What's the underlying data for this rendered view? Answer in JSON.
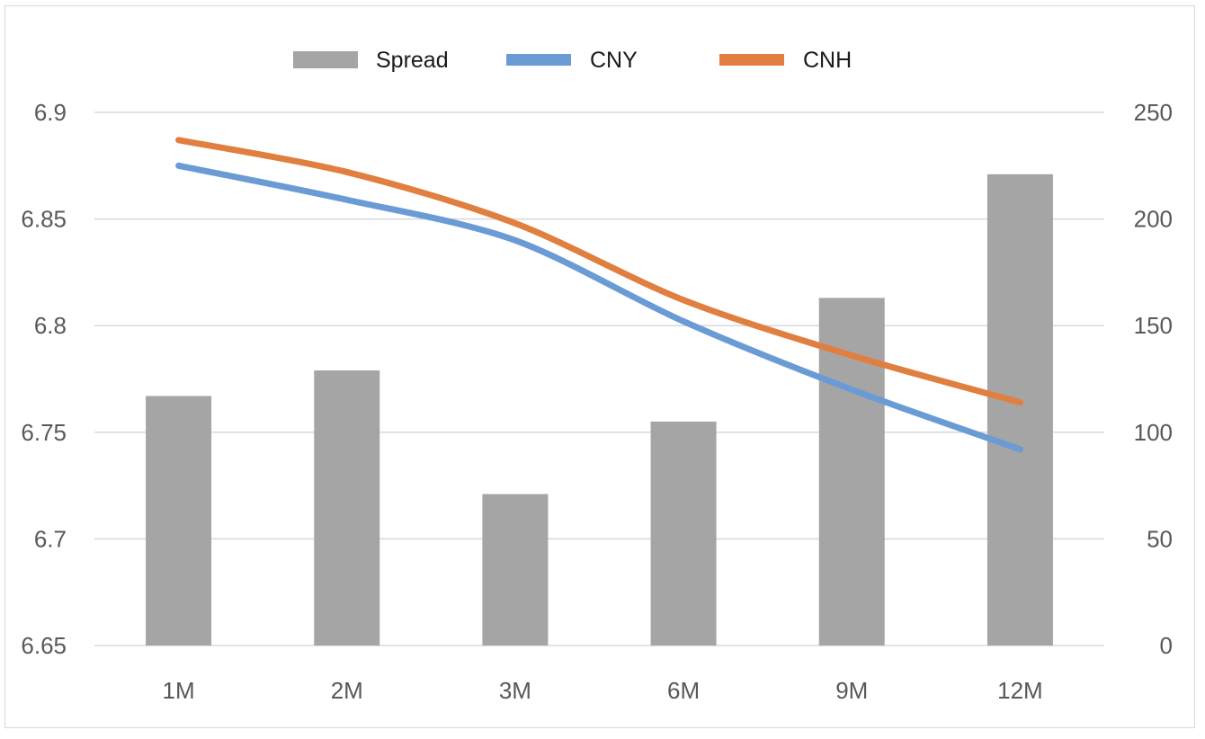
{
  "chart_data": {
    "type": "bar",
    "categories": [
      "1M",
      "2M",
      "3M",
      "6M",
      "9M",
      "12M"
    ],
    "series": [
      {
        "name": "Spread",
        "type": "bar",
        "axis": "right",
        "color": "#a5a5a5",
        "values": [
          117,
          129,
          71,
          105,
          163,
          221
        ]
      },
      {
        "name": "CNY",
        "type": "line",
        "axis": "left",
        "color": "#6a9bd5",
        "values": [
          6.875,
          6.859,
          6.84,
          6.802,
          6.77,
          6.742
        ]
      },
      {
        "name": "CNH",
        "type": "line",
        "axis": "left",
        "color": "#e07f3f",
        "values": [
          6.887,
          6.872,
          6.848,
          6.812,
          6.786,
          6.764
        ]
      }
    ],
    "left_axis": {
      "ylim": [
        6.65,
        6.9
      ],
      "ticks": [
        6.65,
        6.7,
        6.75,
        6.8,
        6.85,
        6.9
      ],
      "tick_labels": [
        "6.65",
        "6.7",
        "6.75",
        "6.8",
        "6.85",
        "6.9"
      ]
    },
    "right_axis": {
      "ylim": [
        0,
        250
      ],
      "ticks": [
        0,
        50,
        100,
        150,
        200,
        250
      ],
      "tick_labels": [
        "0",
        "50",
        "100",
        "150",
        "200",
        "250"
      ]
    },
    "grid": true,
    "legend_position": "top-center",
    "title": "",
    "xlabel": "",
    "ylabel": ""
  }
}
